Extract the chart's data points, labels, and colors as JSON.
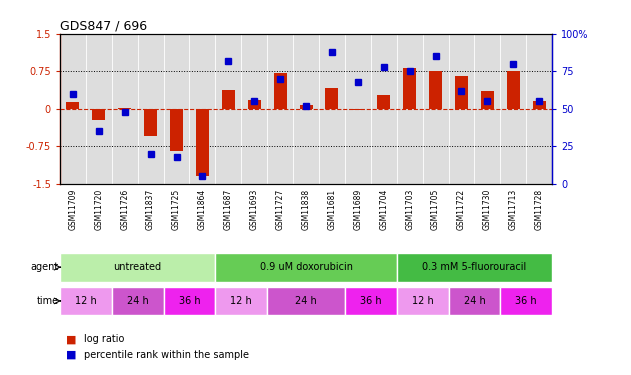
{
  "title": "GDS847 / 696",
  "samples": [
    "GSM11709",
    "GSM11720",
    "GSM11726",
    "GSM11837",
    "GSM11725",
    "GSM11864",
    "GSM11687",
    "GSM11693",
    "GSM11727",
    "GSM11838",
    "GSM11681",
    "GSM11689",
    "GSM11704",
    "GSM11703",
    "GSM11705",
    "GSM11722",
    "GSM11730",
    "GSM11713",
    "GSM11728"
  ],
  "log_ratio": [
    0.13,
    -0.22,
    0.02,
    -0.55,
    -0.85,
    -1.35,
    0.38,
    0.18,
    0.72,
    0.07,
    0.42,
    -0.02,
    0.27,
    0.82,
    0.75,
    0.65,
    0.35,
    0.75,
    0.15
  ],
  "percentile": [
    60,
    35,
    48,
    20,
    18,
    5,
    82,
    55,
    70,
    52,
    88,
    68,
    78,
    75,
    85,
    62,
    55,
    80,
    55
  ],
  "bar_color": "#cc2200",
  "dot_color": "#0000cc",
  "ylim_left": [
    -1.5,
    1.5
  ],
  "ylim_right": [
    0,
    100
  ],
  "yticks_left": [
    -1.5,
    -0.75,
    0,
    0.75,
    1.5
  ],
  "yticks_right": [
    0,
    25,
    50,
    75,
    100
  ],
  "plot_bg": "#dddddd",
  "fig_bg": "#ffffff",
  "sample_label_bg": "#cccccc",
  "agent_groups": [
    {
      "label": "untreated",
      "start": 0,
      "end": 5,
      "color": "#bbeeaa"
    },
    {
      "label": "0.9 uM doxorubicin",
      "start": 6,
      "end": 12,
      "color": "#66cc55"
    },
    {
      "label": "0.3 mM 5-fluorouracil",
      "start": 13,
      "end": 18,
      "color": "#44bb44"
    }
  ],
  "time_groups": [
    {
      "label": "12 h",
      "start": 0,
      "end": 1,
      "color": "#ee99ee"
    },
    {
      "label": "24 h",
      "start": 2,
      "end": 3,
      "color": "#cc55cc"
    },
    {
      "label": "36 h",
      "start": 4,
      "end": 5,
      "color": "#ee22ee"
    },
    {
      "label": "12 h",
      "start": 6,
      "end": 7,
      "color": "#ee99ee"
    },
    {
      "label": "24 h",
      "start": 8,
      "end": 10,
      "color": "#cc55cc"
    },
    {
      "label": "36 h",
      "start": 11,
      "end": 12,
      "color": "#ee22ee"
    },
    {
      "label": "12 h",
      "start": 13,
      "end": 14,
      "color": "#ee99ee"
    },
    {
      "label": "24 h",
      "start": 15,
      "end": 16,
      "color": "#cc55cc"
    },
    {
      "label": "36 h",
      "start": 17,
      "end": 18,
      "color": "#ee22ee"
    }
  ],
  "legend_items": [
    {
      "label": "log ratio",
      "color": "#cc2200"
    },
    {
      "label": "percentile rank within the sample",
      "color": "#0000cc"
    }
  ]
}
